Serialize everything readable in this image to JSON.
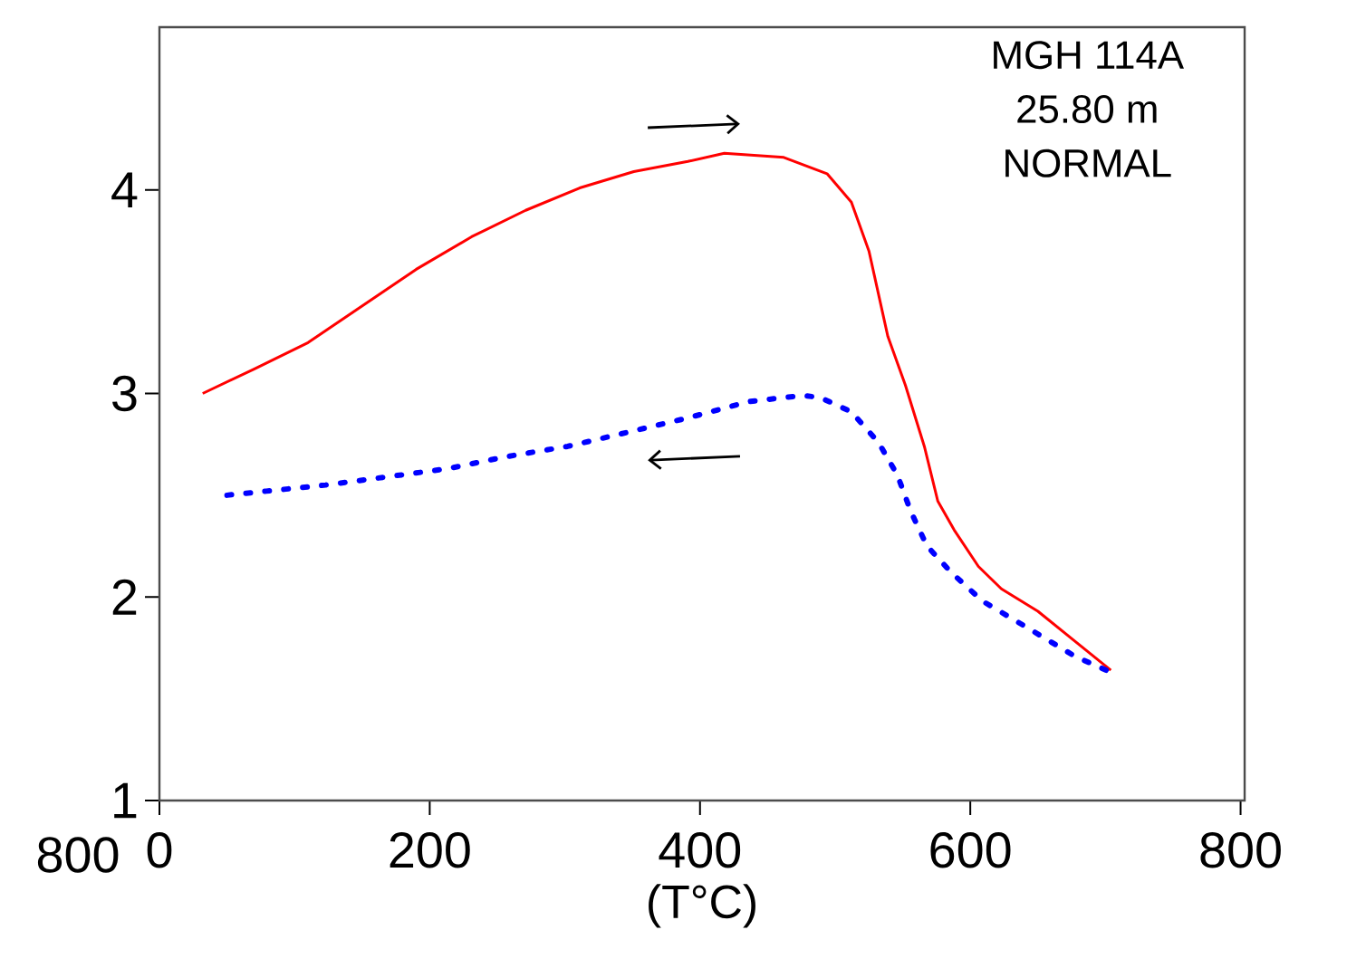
{
  "chart_data": {
    "type": "line",
    "xlabel": "(T°C)",
    "xlim": [
      0,
      803
    ],
    "ylim": [
      1,
      4.8
    ],
    "xticks": [
      0,
      200,
      400,
      600,
      800
    ],
    "yticks": [
      1,
      2,
      3,
      4
    ],
    "grid": false,
    "annotations": [
      "MGH 114A",
      "25.80 m",
      "NORMAL",
      "800"
    ],
    "series": [
      {
        "color": "#ff0000",
        "line_style": "solid",
        "x": [
          32,
          70,
          110,
          150,
          190,
          231,
          271,
          311,
          351,
          391,
          418,
          462,
          494,
          512,
          525,
          539,
          552,
          566,
          576,
          588,
          606,
          623,
          650,
          676,
          704
        ],
        "values": [
          3.0,
          3.12,
          3.25,
          3.43,
          3.61,
          3.77,
          3.9,
          4.01,
          4.09,
          4.14,
          4.18,
          4.16,
          4.08,
          3.94,
          3.7,
          3.28,
          3.04,
          2.74,
          2.47,
          2.33,
          2.15,
          2.04,
          1.93,
          1.79,
          1.64
        ]
      },
      {
        "color": "#0000ff",
        "line_style": "dotted",
        "x": [
          50,
          79,
          123,
          168,
          213,
          257,
          302,
          347,
          391,
          436,
          476,
          489,
          512,
          532,
          546,
          556,
          568,
          586,
          609,
          642,
          677,
          704
        ],
        "values": [
          2.5,
          2.52,
          2.55,
          2.59,
          2.63,
          2.69,
          2.74,
          2.81,
          2.88,
          2.96,
          2.99,
          2.98,
          2.91,
          2.76,
          2.6,
          2.42,
          2.25,
          2.12,
          1.98,
          1.85,
          1.71,
          1.63
        ]
      }
    ]
  }
}
